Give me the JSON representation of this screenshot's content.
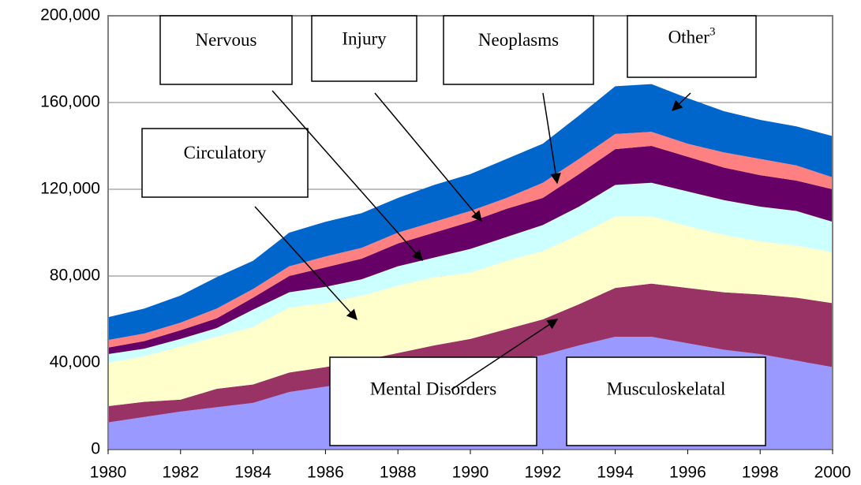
{
  "chart_data": {
    "type": "stacked_area",
    "x": [
      1980,
      1981,
      1982,
      1983,
      1984,
      1985,
      1986,
      1987,
      1988,
      1989,
      1990,
      1991,
      1992,
      1993,
      1994,
      1995,
      1996,
      1997,
      1998,
      1999,
      2000
    ],
    "xlim": [
      1980,
      2000
    ],
    "xticks": [
      1980,
      1982,
      1984,
      1986,
      1988,
      1990,
      1992,
      1994,
      1996,
      1998,
      2000
    ],
    "ylim": [
      0,
      200000
    ],
    "yticks": [
      0,
      {
        "value": 40000,
        "label": "40,000"
      },
      {
        "value": 80000,
        "label": "80,000"
      },
      {
        "value": 120000,
        "label": "120,000"
      },
      {
        "value": 160000,
        "label": "160,000"
      },
      {
        "value": 200000,
        "label": "200,000"
      }
    ],
    "grid": true,
    "series": [
      {
        "name": "Musculoskelatal",
        "color": "#9999ff",
        "values": [
          12500,
          15000,
          17500,
          19500,
          21500,
          26500,
          29000,
          31000,
          34000,
          37000,
          39000,
          41000,
          43500,
          48000,
          52000,
          52000,
          49000,
          46000,
          44000,
          41000,
          38000
        ]
      },
      {
        "name": "Mental Disorders",
        "color": "#993366",
        "values": [
          7500,
          7000,
          5500,
          8500,
          8500,
          9000,
          9000,
          10000,
          10500,
          11000,
          12000,
          14500,
          16500,
          19000,
          22500,
          24500,
          25500,
          26500,
          27500,
          29000,
          29500
        ]
      },
      {
        "name": "Circulatory",
        "color": "#ffffcc",
        "values": [
          20000,
          21000,
          24500,
          24000,
          26500,
          30000,
          29500,
          30000,
          31000,
          31500,
          30500,
          31500,
          31500,
          32000,
          33000,
          31000,
          28500,
          26500,
          24500,
          24000,
          23500
        ]
      },
      {
        "name": "Nervous",
        "color": "#ccffff",
        "values": [
          4000,
          3500,
          3500,
          4000,
          8000,
          7000,
          7500,
          7500,
          9000,
          9000,
          11000,
          11000,
          12000,
          13000,
          14500,
          15500,
          16000,
          16000,
          16000,
          16000,
          14000
        ]
      },
      {
        "name": "Injury",
        "color": "#660066",
        "values": [
          3000,
          3500,
          4000,
          4500,
          5500,
          7500,
          9000,
          9500,
          10500,
          11500,
          12500,
          13000,
          12500,
          15000,
          16500,
          17000,
          16000,
          15000,
          14500,
          14000,
          15000
        ]
      },
      {
        "name": "Neoplasms",
        "color": "#ff8080",
        "values": [
          3500,
          3500,
          3500,
          4500,
          4000,
          4500,
          5000,
          5000,
          5000,
          5000,
          5000,
          5000,
          7000,
          7000,
          7000,
          6500,
          6000,
          7000,
          7500,
          7000,
          5500
        ]
      },
      {
        "name": "Other",
        "note": "3",
        "color": "#0066cc",
        "values": [
          10500,
          11500,
          12500,
          14500,
          13000,
          15500,
          16000,
          16000,
          16000,
          17000,
          17000,
          18000,
          18000,
          20000,
          22000,
          22000,
          21000,
          19000,
          18000,
          18000,
          19000
        ]
      }
    ]
  }
}
